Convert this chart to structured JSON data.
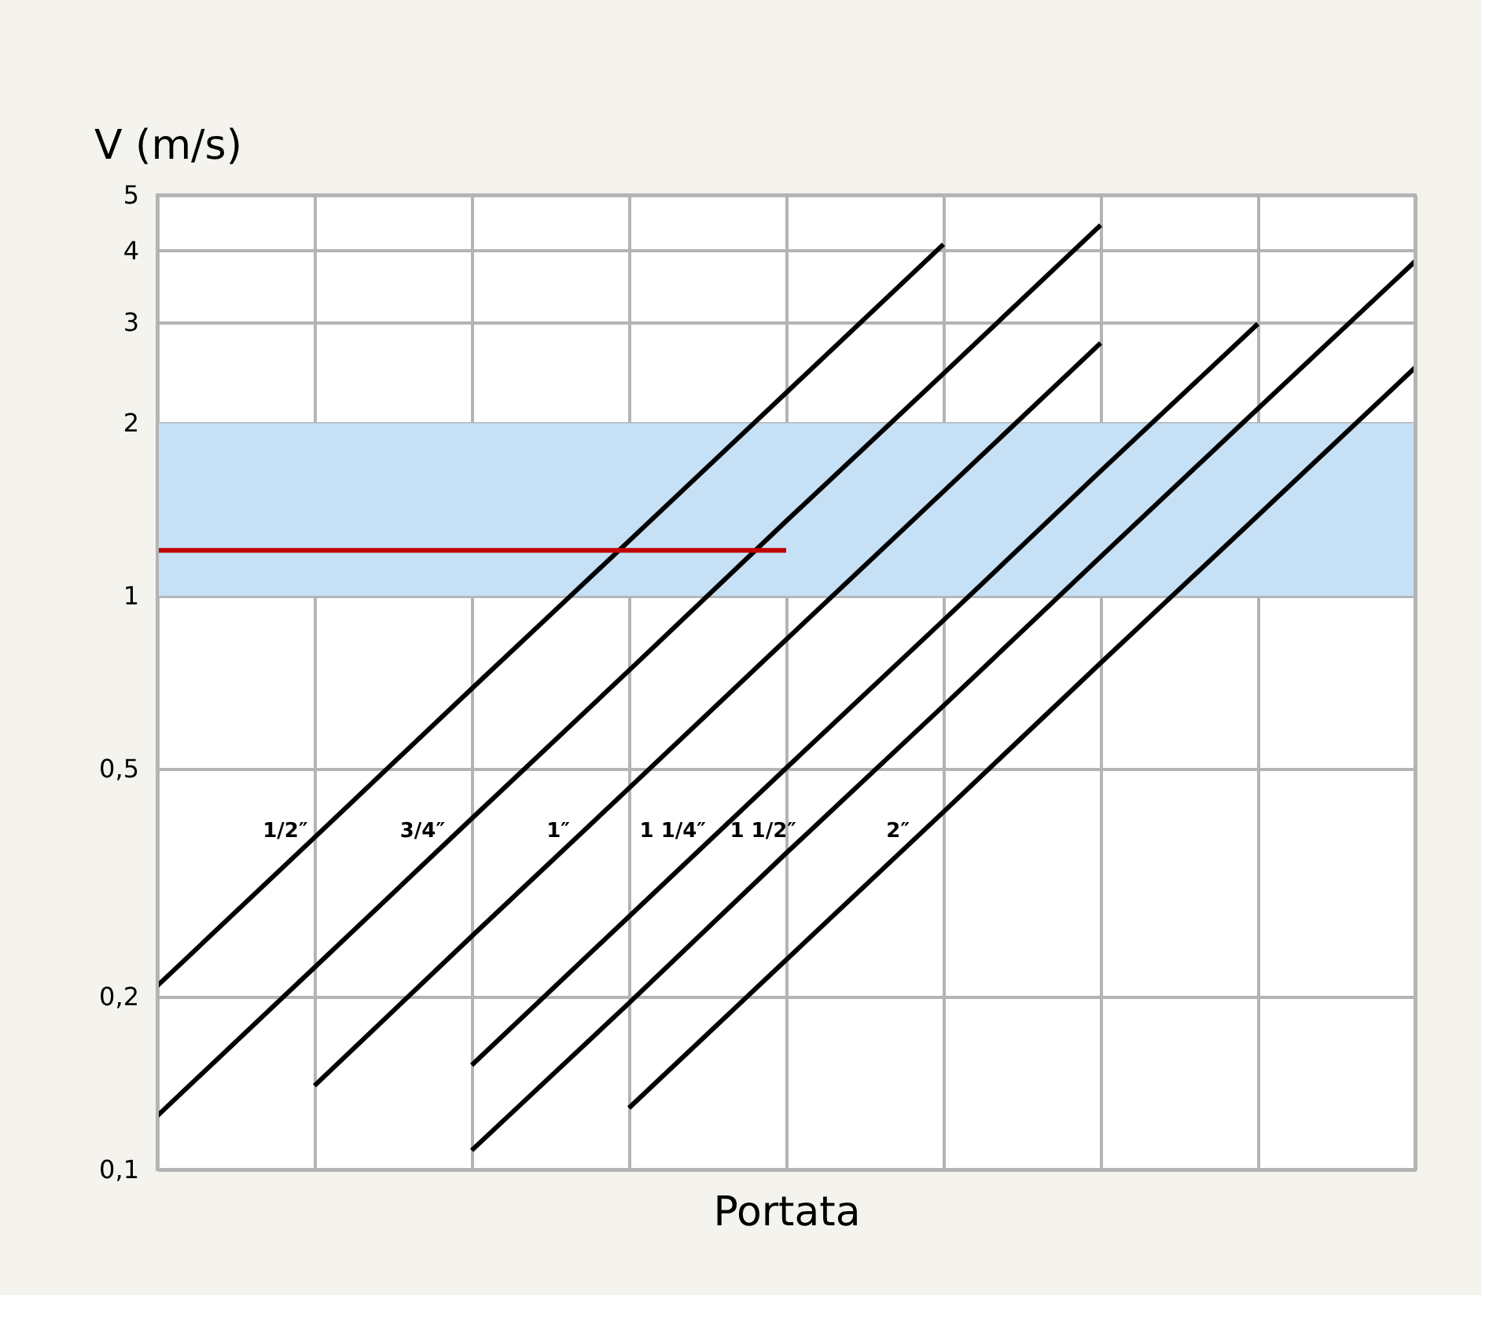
{
  "chart_data": {
    "type": "line",
    "ylabel": "V (m/s)",
    "xlabel": "Portata",
    "categories": [
      null,
      null,
      null,
      null,
      null,
      null,
      null,
      null,
      null
    ],
    "log": "y",
    "ylim": [
      0.1,
      5
    ],
    "yticks": [
      {
        "value": 0.1,
        "label": "0,1"
      },
      {
        "value": 0.2,
        "label": "0,2"
      },
      {
        "value": 0.5,
        "label": "0,5"
      },
      1,
      2,
      3,
      4,
      5
    ],
    "grid": true,
    "tick_labels": "y",
    "marker": "none",
    "line_style": "solid",
    "bands": [
      {
        "axis": "y",
        "from": 1,
        "to": 2,
        "color": "#c6e0f5"
      }
    ],
    "series": [
      {
        "name": "1/2″",
        "color": "#000000",
        "values": [
          0.209,
          0.379,
          0.689,
          1.246,
          2.26,
          4.1,
          null,
          null,
          null
        ]
      },
      {
        "name": "3/4″",
        "color": "#000000",
        "values": [
          0.124,
          0.225,
          0.409,
          0.741,
          1.35,
          2.44,
          4.43,
          null,
          null
        ]
      },
      {
        "name": "1″",
        "color": "#000000",
        "values": [
          null,
          0.14,
          0.255,
          0.462,
          0.839,
          1.52,
          2.76,
          null,
          null
        ]
      },
      {
        "name": "1 1/4″",
        "color": "#000000",
        "values": [
          null,
          null,
          0.152,
          0.276,
          0.501,
          0.906,
          1.65,
          2.98,
          null
        ]
      },
      {
        "name": "1 1/2″",
        "color": "#000000",
        "values": [
          null,
          null,
          0.108,
          0.195,
          0.356,
          0.643,
          1.17,
          2.12,
          3.83
        ]
      },
      {
        "name": "2″",
        "color": "#000000",
        "values": [
          null,
          null,
          null,
          0.128,
          0.232,
          0.42,
          0.764,
          1.38,
          2.5
        ]
      },
      {
        "color": "#c00000",
        "values": [
          1.2,
          1.2,
          1.2,
          1.2,
          1.2,
          null,
          null,
          null,
          null
        ]
      }
    ]
  }
}
